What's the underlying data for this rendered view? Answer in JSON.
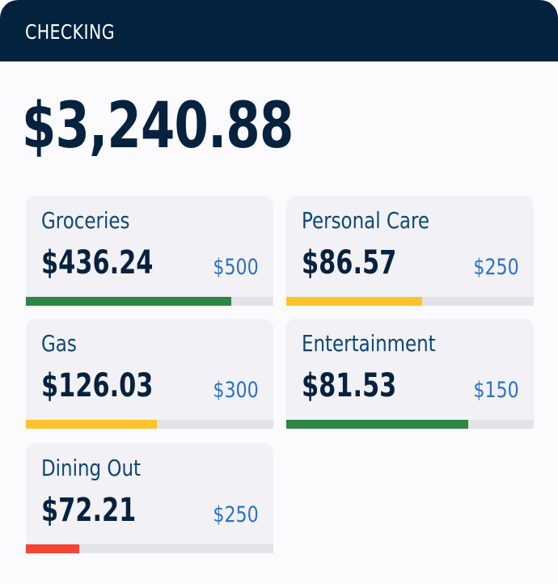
{
  "account": {
    "title": "CHECKING",
    "balance": "$3,240.88"
  },
  "categories": [
    {
      "name": "Groceries",
      "spent": "$436.24",
      "limit": "$500",
      "progress": 0.83,
      "status": "green"
    },
    {
      "name": "Personal Care",
      "spent": "$86.57",
      "limit": "$250",
      "progress": 0.55,
      "status": "yellow"
    },
    {
      "name": "Gas",
      "spent": "$126.03",
      "limit": "$300",
      "progress": 0.53,
      "status": "yellow"
    },
    {
      "name": "Entertainment",
      "spent": "$81.53",
      "limit": "$150",
      "progress": 0.735,
      "status": "green"
    },
    {
      "name": "Dining Out",
      "spent": "$72.21",
      "limit": "$250",
      "progress": 0.215,
      "status": "red"
    }
  ],
  "colors": {
    "header": "#02223d",
    "green": "#2d8646",
    "yellow": "#fbc42d",
    "red": "#f64333",
    "limit_text": "#2c72c7"
  }
}
